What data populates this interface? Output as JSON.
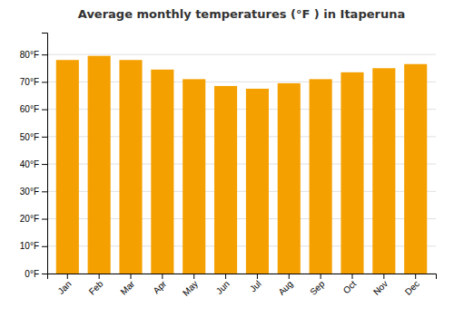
{
  "chart_data": {
    "type": "bar",
    "title": "Average monthly temperatures (°F ) in Itaperuna",
    "categories": [
      "Jan",
      "Feb",
      "Mar",
      "Apr",
      "May",
      "Jun",
      "Jul",
      "Aug",
      "Sep",
      "Oct",
      "Nov",
      "Dec"
    ],
    "values": [
      78.0,
      79.5,
      78.0,
      74.5,
      71.0,
      68.5,
      67.5,
      69.5,
      71.0,
      73.5,
      75.0,
      76.5
    ],
    "color": "#F4A000",
    "ylim": [
      0,
      88
    ],
    "yticks": [
      {
        "value": 0,
        "label": "0°F"
      },
      {
        "value": 10,
        "label": "10°F"
      },
      {
        "value": 20,
        "label": "20°F"
      },
      {
        "value": 30,
        "label": "30°F"
      },
      {
        "value": 40,
        "label": "40°F"
      },
      {
        "value": 50,
        "label": "50°F"
      },
      {
        "value": 60,
        "label": "60°F"
      },
      {
        "value": 70,
        "label": "70°F"
      },
      {
        "value": 80,
        "label": "80°F"
      }
    ],
    "grid": true
  }
}
